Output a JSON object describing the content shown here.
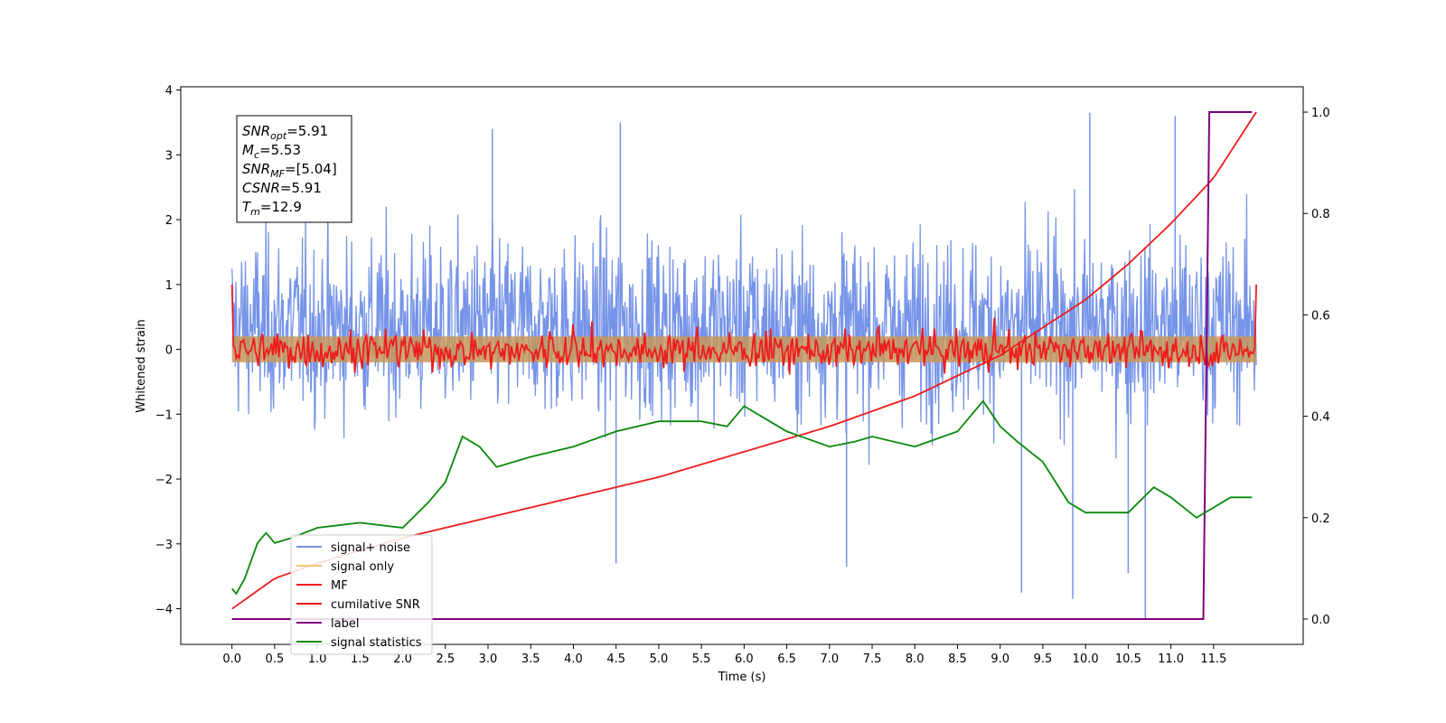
{
  "chart_data": {
    "type": "line",
    "title": "",
    "xlabel": "Time (s)",
    "ylabel": "Whitened strain",
    "xlim": [
      -0.6,
      12.55
    ],
    "ylim": [
      -4.55,
      4.05
    ],
    "y2lim": [
      -0.05,
      1.05
    ],
    "xticks": [
      "0.0",
      "0.5",
      "1.0",
      "1.5",
      "2.0",
      "2.5",
      "3.0",
      "3.5",
      "4.0",
      "4.5",
      "5.0",
      "5.5",
      "6.0",
      "6.5",
      "7.0",
      "7.5",
      "8.0",
      "8.5",
      "9.0",
      "9.5",
      "10.0",
      "10.5",
      "11.0",
      "11.5"
    ],
    "yticks": [
      "4",
      "3",
      "2",
      "1",
      "0",
      "−1",
      "−2",
      "−3",
      "−4"
    ],
    "y2ticks": [
      "1.0",
      "0.8",
      "0.6",
      "0.4",
      "0.2",
      "0.0"
    ],
    "grid": false,
    "legend_position": "lower-left",
    "annotation": {
      "lines": [
        {
          "sym": "SNR",
          "sub": "opt",
          "val": "=5.91"
        },
        {
          "sym": "M",
          "sub": "c",
          "val": "=5.53"
        },
        {
          "sym": "SNR",
          "sub": "MF",
          "val": "=[5.04]"
        },
        {
          "sym": "CSNR",
          "sub": "",
          "val": "=5.91"
        },
        {
          "sym": "T",
          "sub": "m",
          "val": "=12.9"
        }
      ]
    },
    "series": [
      {
        "name": "signal+ noise",
        "color": "#7694e8",
        "axis": "left",
        "amplitude_band": [
          -2.2,
          3.1
        ],
        "spikes": [
          [
            3.05,
            3.4
          ],
          [
            4.55,
            3.5
          ],
          [
            10.05,
            3.65
          ],
          [
            11.05,
            3.6
          ],
          [
            10.7,
            -4.15
          ],
          [
            4.5,
            -3.3
          ],
          [
            7.2,
            -3.35
          ],
          [
            9.25,
            -3.75
          ],
          [
            9.85,
            -3.85
          ],
          [
            10.5,
            -3.45
          ]
        ]
      },
      {
        "name": "signal only",
        "color": "#f6c37a",
        "axis": "left",
        "amplitude": 0.2
      },
      {
        "name": "MF",
        "color": "#ee1c1c",
        "axis": "left",
        "x": [
          0.0,
          0.05,
          0.2,
          0.5,
          1.0,
          1.5,
          2.0,
          3.0,
          4.0,
          5.0,
          6.0,
          7.0,
          8.0,
          9.0,
          10.0,
          11.0,
          11.9,
          11.97,
          12.0
        ],
        "y": [
          1.0,
          0.0,
          0.2,
          0.55,
          0.35,
          0.6,
          0.6,
          0.45,
          0.55,
          0.45,
          0.5,
          0.45,
          0.5,
          0.5,
          0.5,
          0.4,
          0.3,
          0.1,
          1.0
        ],
        "band": [
          -0.3,
          0.3
        ]
      },
      {
        "name": "cumilative SNR",
        "color": "#ee1c1c",
        "axis": "right",
        "x": [
          0.0,
          0.5,
          1.0,
          2.0,
          3.0,
          4.0,
          5.0,
          6.0,
          7.0,
          8.0,
          9.0,
          10.0,
          10.5,
          11.0,
          11.5,
          12.0
        ],
        "y": [
          0.02,
          0.08,
          0.11,
          0.16,
          0.2,
          0.24,
          0.28,
          0.33,
          0.38,
          0.44,
          0.52,
          0.63,
          0.7,
          0.78,
          0.87,
          1.0
        ]
      },
      {
        "name": "label",
        "color": "#800080",
        "axis": "right",
        "x": [
          0.0,
          11.38,
          11.45,
          11.95
        ],
        "y": [
          0.0,
          0.0,
          1.0,
          1.0
        ]
      },
      {
        "name": "signal statistics",
        "color": "#0a8a0a",
        "axis": "right",
        "x": [
          0.0,
          0.05,
          0.15,
          0.3,
          0.4,
          0.5,
          0.7,
          1.0,
          1.5,
          2.0,
          2.3,
          2.5,
          2.7,
          2.9,
          3.1,
          3.5,
          4.0,
          4.5,
          5.0,
          5.5,
          5.8,
          6.0,
          6.3,
          6.5,
          7.0,
          7.3,
          7.5,
          8.0,
          8.5,
          8.8,
          9.0,
          9.2,
          9.5,
          9.8,
          10.0,
          10.5,
          10.8,
          11.0,
          11.3,
          11.5,
          11.7,
          11.95
        ],
        "y": [
          0.06,
          0.05,
          0.08,
          0.15,
          0.17,
          0.15,
          0.16,
          0.18,
          0.19,
          0.18,
          0.23,
          0.27,
          0.36,
          0.34,
          0.3,
          0.32,
          0.34,
          0.37,
          0.39,
          0.39,
          0.38,
          0.42,
          0.39,
          0.37,
          0.34,
          0.35,
          0.36,
          0.34,
          0.37,
          0.43,
          0.38,
          0.35,
          0.31,
          0.23,
          0.21,
          0.21,
          0.26,
          0.24,
          0.2,
          0.22,
          0.24,
          0.24
        ]
      }
    ]
  }
}
